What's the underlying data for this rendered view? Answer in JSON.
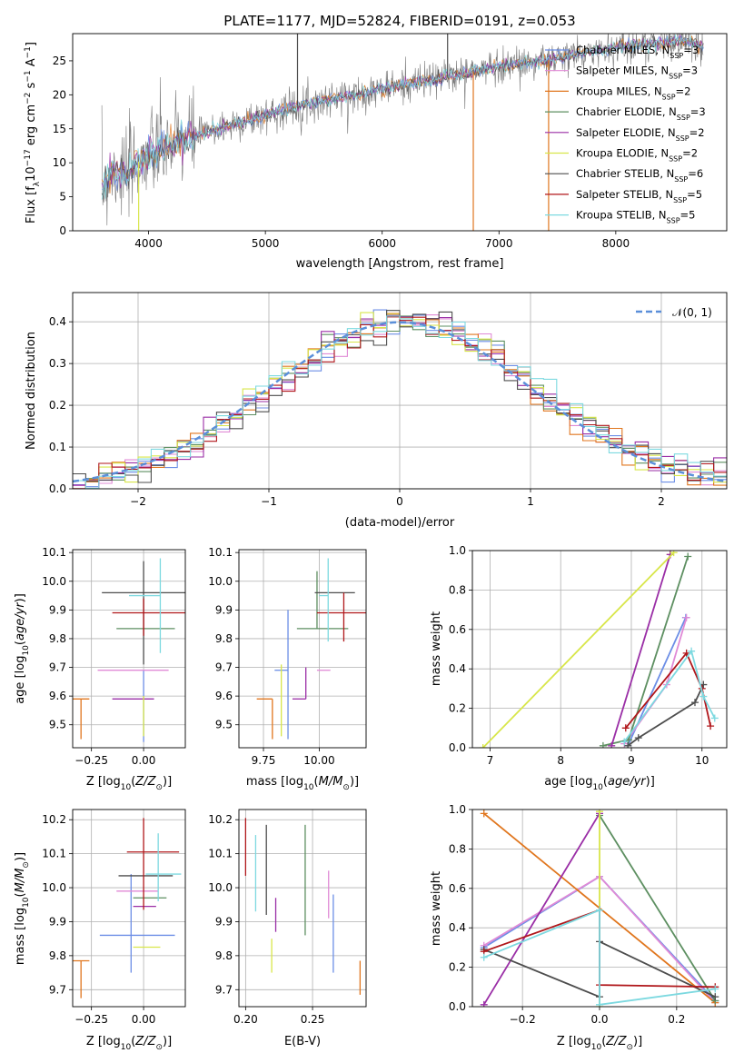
{
  "title": "PLATE=1177, MJD=52824, FIBERID=0191, z=0.053",
  "colors": {
    "Chabrier MILES": "#6c8ee6",
    "Salpeter MILES": "#e08ad6",
    "Kroupa MILES": "#e0761e",
    "Chabrier ELODIE": "#5d8f61",
    "Salpeter ELODIE": "#9a2ea6",
    "Kroupa ELODIE": "#d8e64a",
    "Chabrier STELIB": "#4d4d4d",
    "Salpeter STELIB": "#b0161a",
    "Kroupa STELIB": "#7dd9e0"
  },
  "chart_data": [
    {
      "id": "spectrum",
      "type": "line",
      "xlabel": "wavelength [Angstrom, rest frame]",
      "ylabel": "Flux [f_λ10^-17 erg cm^-2 s^-1 A^-1]",
      "xlim": [
        3350,
        8950
      ],
      "ylim": [
        0,
        29
      ],
      "xticks": [
        4000,
        5000,
        6000,
        7000,
        8000
      ],
      "yticks": [
        0,
        5,
        10,
        15,
        20,
        25
      ],
      "grid": false,
      "legend_placement": "right",
      "legend": [
        {
          "series": "Chabrier MILES",
          "label": "Chabrier MILES, N",
          "sub": "SSP",
          "suffix": "=3"
        },
        {
          "series": "Salpeter MILES",
          "label": "Salpeter MILES, N",
          "sub": "SSP",
          "suffix": "=3"
        },
        {
          "series": "Kroupa MILES",
          "label": "Kroupa MILES, N",
          "sub": "SSP",
          "suffix": "=2"
        },
        {
          "series": "Chabrier ELODIE",
          "label": "Chabrier ELODIE, N",
          "sub": "SSP",
          "suffix": "=3"
        },
        {
          "series": "Salpeter ELODIE",
          "label": "Salpeter ELODIE, N",
          "sub": "SSP",
          "suffix": "=2"
        },
        {
          "series": "Kroupa ELODIE",
          "label": "Kroupa ELODIE, N",
          "sub": "SSP",
          "suffix": "=2"
        },
        {
          "series": "Chabrier STELIB",
          "label": "Chabrier STELIB, N",
          "sub": "SSP",
          "suffix": "=6"
        },
        {
          "series": "Salpeter STELIB",
          "label": "Salpeter STELIB, N",
          "sub": "SSP",
          "suffix": "=5"
        },
        {
          "series": "Kroupa STELIB",
          "label": "Kroupa STELIB, N",
          "sub": "SSP",
          "suffix": "=5"
        }
      ],
      "continuum": {
        "x": [
          3600,
          3700,
          3800,
          3900,
          4000,
          4100,
          4200,
          4300,
          4400,
          4500,
          4700,
          5000,
          5300,
          5600,
          5900,
          6200,
          6500,
          6800,
          7100,
          7400,
          7700,
          8000,
          8300,
          8600,
          8750
        ],
        "y": [
          6,
          9,
          8,
          10,
          11,
          12,
          12.5,
          13.5,
          14,
          14.5,
          15.5,
          17,
          18.5,
          19.5,
          20.5,
          21.5,
          22.5,
          23.5,
          24.5,
          25,
          26,
          27,
          27.5,
          28,
          27
        ]
      },
      "spikes": [
        {
          "x": 3915,
          "ylim_low": 0,
          "series": "Kroupa ELODIE"
        },
        {
          "x": 5275,
          "ylim_high": 29,
          "series": "Chabrier STELIB"
        },
        {
          "x": 6560,
          "ylim_high": 29,
          "series": "Chabrier STELIB"
        },
        {
          "x": 6780,
          "ylim_low": 0,
          "series": "Kroupa MILES"
        },
        {
          "x": 7425,
          "ylim_low": 0,
          "series": "Kroupa MILES"
        }
      ]
    },
    {
      "id": "residual-histogram",
      "type": "histogram",
      "xlabel": "(data-model)/error",
      "ylabel": "Normed distribution",
      "xlim": [
        -2.5,
        2.5
      ],
      "ylim": [
        0,
        0.47
      ],
      "xticks": [
        -2,
        -1,
        0,
        1,
        2
      ],
      "yticks": [
        0,
        0.1,
        0.2,
        0.3,
        0.4
      ],
      "grid": true,
      "legend": [
        {
          "label": "𝒩(0, 1)",
          "style": "dashed",
          "color": "#5b8fd9"
        }
      ],
      "legend_placement": "top-right",
      "bin_width": 0.1,
      "reference_curve": "normal pdf, mean 0, sigma 1"
    },
    {
      "id": "age-vs-Z",
      "type": "errorbar",
      "xlabel": "Z [log10(Z/Z⊙)]",
      "ylabel": "age [log10(age/yr)]",
      "xlim": [
        -0.34,
        0.2
      ],
      "ylim": [
        9.42,
        10.11
      ],
      "xticks": [
        -0.25,
        0.0
      ],
      "xticklabels": [
        "−0.25",
        "0.00"
      ],
      "yticks": [
        9.5,
        9.6,
        9.7,
        9.8,
        9.9,
        10.0,
        10.1
      ],
      "grid": true,
      "points": [
        {
          "series": "Chabrier MILES",
          "x": 0.0,
          "xerr": [
            0.0,
            0.0
          ],
          "y": 9.69,
          "yerr": [
            0.25,
            0.0
          ]
        },
        {
          "series": "Salpeter MILES",
          "x": -0.09,
          "xerr": [
            0.13,
            0.21
          ],
          "y": 9.69,
          "yerr": [
            0.0,
            0.0
          ]
        },
        {
          "series": "Kroupa MILES",
          "x": -0.3,
          "xerr": [
            0.04,
            0.04
          ],
          "y": 9.59,
          "yerr": [
            0.14,
            0.0
          ]
        },
        {
          "series": "Chabrier ELODIE",
          "x": 0.0,
          "xerr": [
            0.13,
            0.15
          ],
          "y": 9.835,
          "yerr": [
            0.0,
            0.0
          ]
        },
        {
          "series": "Salpeter ELODIE",
          "x": -0.01,
          "xerr": [
            0.14,
            0.06
          ],
          "y": 9.59,
          "yerr": [
            0.0,
            0.0
          ]
        },
        {
          "series": "Kroupa ELODIE",
          "x": 0.0,
          "xerr": [
            0.0,
            0.0
          ],
          "y": 9.6,
          "yerr": [
            0.14,
            0.0
          ]
        },
        {
          "series": "Chabrier STELIB",
          "x": 0.0,
          "xerr": [
            0.2,
            0.22
          ],
          "y": 9.96,
          "yerr": [
            0.25,
            0.11
          ]
        },
        {
          "series": "Salpeter STELIB",
          "x": 0.0,
          "xerr": [
            0.15,
            0.32
          ],
          "y": 9.89,
          "yerr": [
            0.08,
            0.05
          ]
        },
        {
          "series": "Kroupa STELIB",
          "x": 0.08,
          "xerr": [
            0.15,
            0.0
          ],
          "y": 9.95,
          "yerr": [
            0.2,
            0.13
          ]
        }
      ]
    },
    {
      "id": "age-vs-mass",
      "type": "errorbar",
      "xlabel": "mass [log10(M/M⊙)]",
      "ylabel": "",
      "xlim": [
        9.64,
        10.21
      ],
      "ylim": [
        9.42,
        10.11
      ],
      "xticks": [
        9.75,
        10.0
      ],
      "xticklabels": [
        "9.75",
        "10.00"
      ],
      "yticks": [
        9.5,
        9.6,
        9.7,
        9.8,
        9.9,
        10.0,
        10.1
      ],
      "grid": true,
      "points": [
        {
          "series": "Chabrier MILES",
          "x": 9.86,
          "xerr": [
            0.06,
            0.0
          ],
          "y": 9.69,
          "yerr": [
            0.24,
            0.21
          ]
        },
        {
          "series": "Salpeter MILES",
          "x": 9.99,
          "xerr": [
            0.0,
            0.06
          ],
          "y": 9.69,
          "yerr": [
            0.0,
            0.0
          ]
        },
        {
          "series": "Kroupa MILES",
          "x": 9.79,
          "xerr": [
            0.07,
            0.0
          ],
          "y": 9.59,
          "yerr": [
            0.14,
            0.0
          ]
        },
        {
          "series": "Chabrier ELODIE",
          "x": 9.99,
          "xerr": [
            0.09,
            0.14
          ],
          "y": 9.835,
          "yerr": [
            0.0,
            0.2
          ]
        },
        {
          "series": "Salpeter ELODIE",
          "x": 9.94,
          "xerr": [
            0.06,
            0.0
          ],
          "y": 9.59,
          "yerr": [
            0.0,
            0.11
          ]
        },
        {
          "series": "Kroupa ELODIE",
          "x": 9.83,
          "xerr": [
            0.0,
            0.0
          ],
          "y": 9.6,
          "yerr": [
            0.14,
            0.11
          ]
        },
        {
          "series": "Chabrier STELIB",
          "x": 10.04,
          "xerr": [
            0.06,
            0.12
          ],
          "y": 9.96,
          "yerr": [
            0.0,
            0.0
          ]
        },
        {
          "series": "Salpeter STELIB",
          "x": 10.11,
          "xerr": [
            0.12,
            0.11
          ],
          "y": 9.89,
          "yerr": [
            0.1,
            0.07
          ]
        },
        {
          "series": "Kroupa STELIB",
          "x": 10.04,
          "xerr": [
            0.04,
            0.0
          ],
          "y": 9.95,
          "yerr": [
            0.16,
            0.13
          ]
        }
      ]
    },
    {
      "id": "mass-weight-vs-age",
      "type": "line",
      "xlabel": "age [log10(age/yr)]",
      "ylabel": "mass weight",
      "xlim": [
        6.75,
        10.35
      ],
      "ylim": [
        0,
        1.0
      ],
      "xticks": [
        7,
        8,
        9,
        10
      ],
      "yticks": [
        0,
        0.2,
        0.4,
        0.6,
        0.8,
        1.0
      ],
      "grid": true,
      "series": [
        {
          "series": "Chabrier MILES",
          "x": [
            8.95,
            9.77
          ],
          "y": [
            0.01,
            0.66
          ]
        },
        {
          "series": "Salpeter MILES",
          "x": [
            8.9,
            9.5,
            9.78
          ],
          "y": [
            0.02,
            0.32,
            0.66
          ]
        },
        {
          "series": "Kroupa MILES",
          "x": [
            9.55
          ],
          "y": [
            0.98
          ]
        },
        {
          "series": "Chabrier ELODIE",
          "x": [
            8.6,
            8.96,
            9.8
          ],
          "y": [
            0.01,
            0.04,
            0.97
          ]
        },
        {
          "series": "Salpeter ELODIE",
          "x": [
            8.72,
            9.55
          ],
          "y": [
            0.01,
            0.98
          ]
        },
        {
          "series": "Kroupa ELODIE",
          "x": [
            6.9,
            9.6
          ],
          "y": [
            0.0,
            0.99
          ]
        },
        {
          "series": "Chabrier STELIB",
          "x": [
            8.95,
            9.1,
            9.9,
            10.02
          ],
          "y": [
            0.01,
            0.05,
            0.23,
            0.32
          ]
        },
        {
          "series": "Salpeter STELIB",
          "x": [
            8.92,
            9.78,
            10.0,
            10.12
          ],
          "y": [
            0.1,
            0.48,
            0.3,
            0.11
          ]
        },
        {
          "series": "Kroupa STELIB",
          "x": [
            8.9,
            9.85,
            10.02,
            10.18
          ],
          "y": [
            0.03,
            0.49,
            0.26,
            0.15
          ]
        }
      ]
    },
    {
      "id": "mass-vs-Z",
      "type": "errorbar",
      "xlabel": "Z [log10(Z/Z⊙)]",
      "ylabel": "mass [log10(M/M⊙)]",
      "xlim": [
        -0.34,
        0.2
      ],
      "ylim": [
        9.65,
        10.23
      ],
      "xticks": [
        -0.25,
        0.0
      ],
      "xticklabels": [
        "−0.25",
        "0.00"
      ],
      "yticks": [
        9.7,
        9.8,
        9.9,
        10.0,
        10.1,
        10.2
      ],
      "grid": true,
      "points": [
        {
          "series": "Chabrier MILES",
          "x": -0.06,
          "xerr": [
            0.15,
            0.21
          ],
          "y": 9.86,
          "yerr": [
            0.11,
            0.18
          ]
        },
        {
          "series": "Salpeter MILES",
          "x": -0.01,
          "xerr": [
            0.12,
            0.08
          ],
          "y": 9.99,
          "yerr": [
            0.0,
            0.0
          ]
        },
        {
          "series": "Kroupa MILES",
          "x": -0.3,
          "xerr": [
            0.04,
            0.04
          ],
          "y": 9.785,
          "yerr": [
            0.11,
            0.0
          ]
        },
        {
          "series": "Chabrier ELODIE",
          "x": 0.0,
          "xerr": [
            0.05,
            0.11
          ],
          "y": 9.97,
          "yerr": [
            0.0,
            0.0
          ]
        },
        {
          "series": "Salpeter ELODIE",
          "x": 0.0,
          "xerr": [
            0.05,
            0.06
          ],
          "y": 9.945,
          "yerr": [
            0.0,
            0.0
          ]
        },
        {
          "series": "Kroupa ELODIE",
          "x": 0.0,
          "xerr": [
            0.05,
            0.08
          ],
          "y": 9.825,
          "yerr": [
            0.0,
            0.0
          ]
        },
        {
          "series": "Chabrier STELIB",
          "x": 0.0,
          "xerr": [
            0.12,
            0.14
          ],
          "y": 10.035,
          "yerr": [
            0.0,
            0.0
          ]
        },
        {
          "series": "Salpeter STELIB",
          "x": 0.0,
          "xerr": [
            0.08,
            0.17
          ],
          "y": 10.105,
          "yerr": [
            0.17,
            0.1
          ]
        },
        {
          "series": "Kroupa STELIB",
          "x": 0.07,
          "xerr": [
            0.06,
            0.11
          ],
          "y": 10.04,
          "yerr": [
            0.08,
            0.12
          ]
        }
      ]
    },
    {
      "id": "mass-vs-ebv",
      "type": "errorbar",
      "xlabel": "E(B-V)",
      "ylabel": "",
      "xlim": [
        0.195,
        0.29
      ],
      "ylim": [
        9.65,
        10.23
      ],
      "xticks": [
        0.2,
        0.25
      ],
      "xticklabels": [
        "0.20",
        "0.25"
      ],
      "yticks": [
        9.7,
        9.8,
        9.9,
        10.0,
        10.1,
        10.2
      ],
      "grid": true,
      "points": [
        {
          "series": "Chabrier MILES",
          "x": 0.2655,
          "xerr": [
            0,
            0
          ],
          "y": 9.86,
          "yerr": [
            0.11,
            0.12
          ]
        },
        {
          "series": "Salpeter MILES",
          "x": 0.262,
          "xerr": [
            0,
            0
          ],
          "y": 9.99,
          "yerr": [
            0.08,
            0.06
          ]
        },
        {
          "series": "Kroupa MILES",
          "x": 0.2855,
          "xerr": [
            0,
            0
          ],
          "y": 9.735,
          "yerr": [
            0.05,
            0.05
          ]
        },
        {
          "series": "Chabrier ELODIE",
          "x": 0.2445,
          "xerr": [
            0,
            0
          ],
          "y": 10.02,
          "yerr": [
            0.16,
            0.165
          ]
        },
        {
          "series": "Salpeter ELODIE",
          "x": 0.2225,
          "xerr": [
            0,
            0
          ],
          "y": 9.92,
          "yerr": [
            0.05,
            0.05
          ]
        },
        {
          "series": "Kroupa ELODIE",
          "x": 0.2195,
          "xerr": [
            0,
            0
          ],
          "y": 9.8,
          "yerr": [
            0.05,
            0.05
          ]
        },
        {
          "series": "Chabrier STELIB",
          "x": 0.2155,
          "xerr": [
            0,
            0
          ],
          "y": 10.05,
          "yerr": [
            0.13,
            0.135
          ]
        },
        {
          "series": "Salpeter STELIB",
          "x": 0.2,
          "xerr": [
            0,
            0
          ],
          "y": 10.12,
          "yerr": [
            0.085,
            0.085
          ]
        },
        {
          "series": "Kroupa STELIB",
          "x": 0.2075,
          "xerr": [
            0,
            0
          ],
          "y": 10.04,
          "yerr": [
            0.11,
            0.115
          ]
        }
      ]
    },
    {
      "id": "mass-weight-vs-Z",
      "type": "line",
      "xlabel": "Z [log10(Z/Z⊙)]",
      "ylabel": "mass weight",
      "xlim": [
        -0.33,
        0.33
      ],
      "ylim": [
        0,
        1.0
      ],
      "xticks": [
        -0.2,
        0.0,
        0.2
      ],
      "xticklabels": [
        "−0.2",
        "0.0",
        "0.2"
      ],
      "yticks": [
        0,
        0.2,
        0.4,
        0.6,
        0.8,
        1.0
      ],
      "grid": true,
      "series": [
        {
          "series": "Chabrier MILES",
          "x": [
            -0.3,
            0.0,
            0.3
          ],
          "y": [
            0.3,
            0.66,
            0.03
          ]
        },
        {
          "series": "Salpeter MILES",
          "x": [
            -0.3,
            0.0,
            0.3
          ],
          "y": [
            0.31,
            0.66,
            0.02
          ]
        },
        {
          "series": "Kroupa MILES",
          "x": [
            -0.3,
            0.3
          ],
          "y": [
            0.98,
            0.02
          ]
        },
        {
          "series": "Chabrier ELODIE",
          "x": [
            0.0,
            0.3
          ],
          "y": [
            0.97,
            0.03
          ]
        },
        {
          "series": "Salpeter ELODIE",
          "x": [
            -0.3,
            0.0
          ],
          "y": [
            0.01,
            0.98
          ]
        },
        {
          "series": "Kroupa ELODIE",
          "x": [
            0.0,
            0.0
          ],
          "y": [
            0.0,
            0.99
          ]
        },
        {
          "series": "Chabrier STELIB",
          "x": [
            -0.3,
            0.0,
            0.0,
            0.3
          ],
          "y": [
            0.29,
            0.05,
            0.33,
            0.05
          ]
        },
        {
          "series": "Salpeter STELIB",
          "x": [
            -0.3,
            0.0,
            0.0,
            0.3
          ],
          "y": [
            0.28,
            0.49,
            0.11,
            0.1
          ]
        },
        {
          "series": "Kroupa STELIB",
          "x": [
            -0.3,
            0.0,
            0.0,
            0.3
          ],
          "y": [
            0.25,
            0.49,
            0.01,
            0.09
          ]
        }
      ]
    }
  ]
}
